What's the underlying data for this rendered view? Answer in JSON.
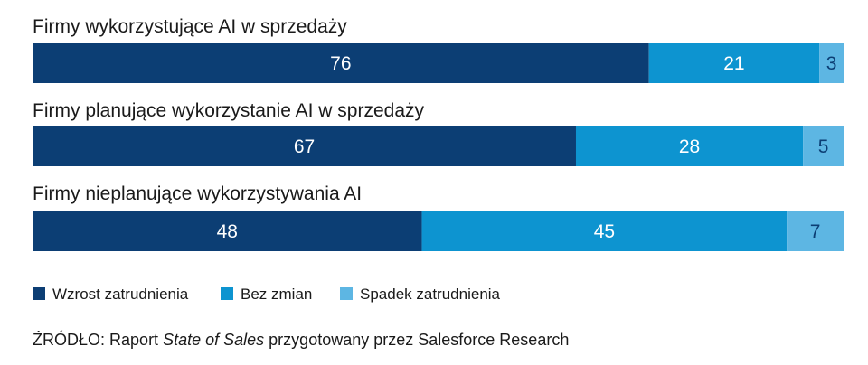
{
  "chart_data": {
    "type": "bar",
    "orientation": "horizontal",
    "stacked": true,
    "categories": [
      "Firmy wykorzystujące AI w sprzedaży",
      "Firmy planujące wykorzystanie AI w sprzedaży",
      "Firmy nieplanujące wykorzystywania AI"
    ],
    "series": [
      {
        "name": "Wzrost zatrudnienia",
        "values": [
          76,
          67,
          48
        ],
        "color": "#0c3e74",
        "label_color": "#ffffff"
      },
      {
        "name": "Bez zmian",
        "values": [
          21,
          28,
          45
        ],
        "color": "#0d94d0",
        "label_color": "#ffffff"
      },
      {
        "name": "Spadek zatrudnienia",
        "values": [
          3,
          5,
          7
        ],
        "color": "#5db6e3",
        "label_color": "#0c3e74"
      }
    ],
    "xlim": [
      0,
      100
    ],
    "grid": false,
    "legend_position": "bottom-left"
  },
  "source": {
    "label": "ŹRÓDŁO:",
    "prefix": "Raport",
    "title": "State of Sales",
    "suffix": "przygotowany przez Salesforce Research"
  }
}
